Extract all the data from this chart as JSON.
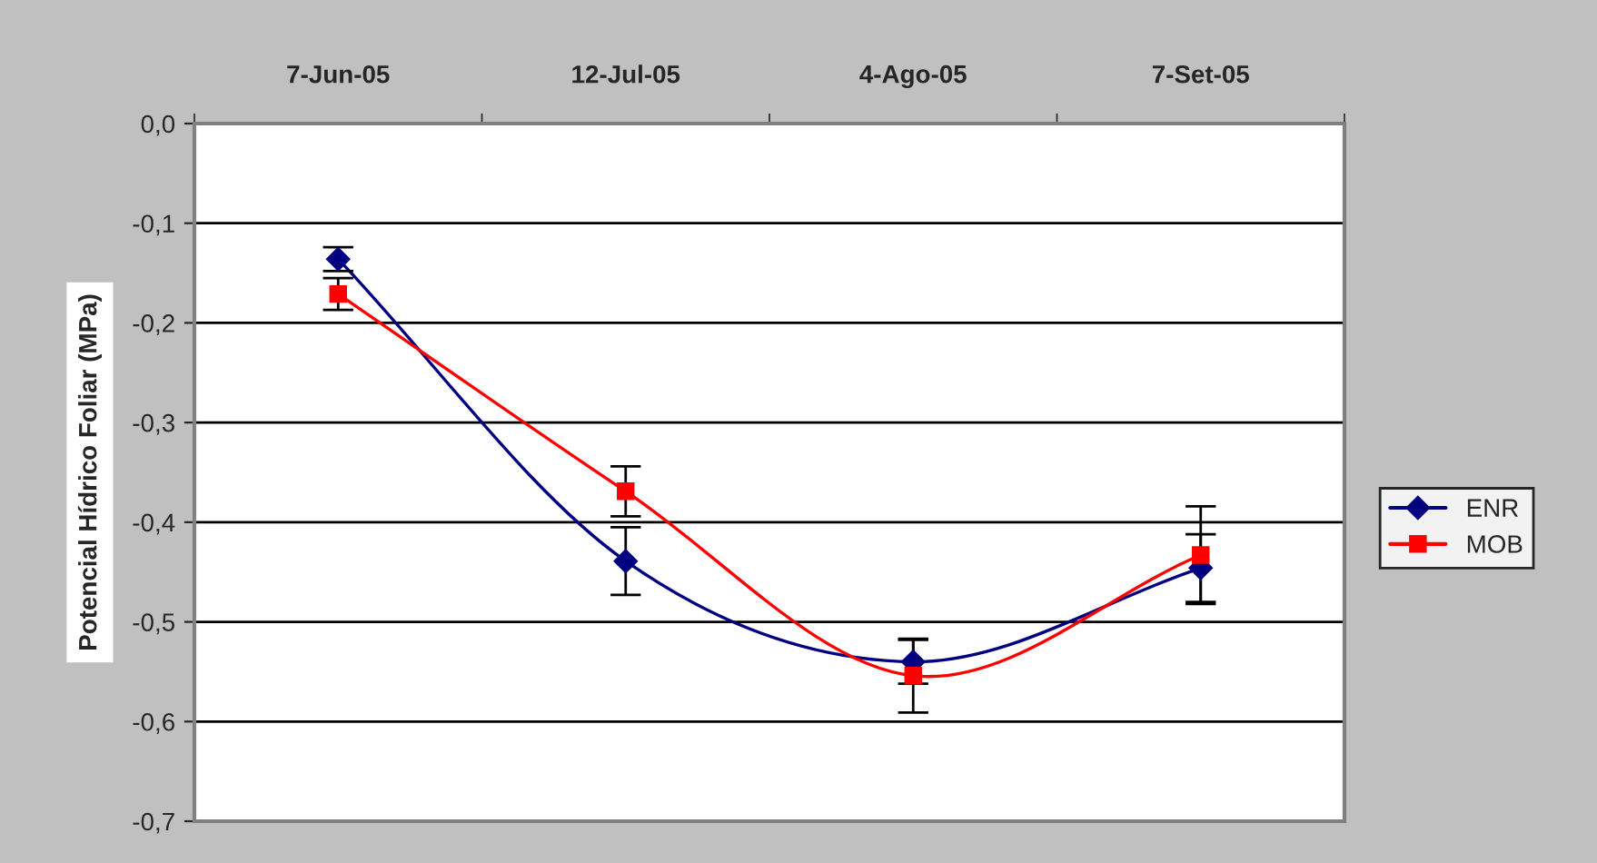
{
  "chart_data": {
    "type": "line",
    "ylabel": "Potencial Hídrico Foliar (MPa)",
    "categories": [
      "7-Jun-05",
      "12-Jul-05",
      "4-Ago-05",
      "7-Set-05"
    ],
    "series": [
      {
        "name": "ENR",
        "color": "#000080",
        "marker": "diamond",
        "values": [
          -0.136,
          -0.439,
          -0.54,
          -0.446
        ],
        "errors": [
          0.012,
          0.034,
          0.022,
          0.034
        ]
      },
      {
        "name": "MOB",
        "color": "#ff0000",
        "marker": "square",
        "values": [
          -0.171,
          -0.369,
          -0.554,
          -0.433
        ],
        "errors": [
          0.016,
          0.025,
          0.037,
          0.049
        ]
      }
    ],
    "ylim": [
      -0.7,
      0.0
    ],
    "yticks": [
      {
        "value": -0.7,
        "label": "-0,7"
      },
      {
        "value": -0.6,
        "label": "-0,6"
      },
      {
        "value": -0.5,
        "label": "-0,5"
      },
      {
        "value": -0.4,
        "label": "-0,4"
      },
      {
        "value": -0.3,
        "label": "-0,3"
      },
      {
        "value": -0.2,
        "label": "-0,2"
      },
      {
        "value": -0.1,
        "label": "-0,1"
      },
      {
        "value": 0.0,
        "label": "0,0"
      }
    ],
    "grid": "y",
    "legend": "right",
    "line_style": "solid"
  }
}
